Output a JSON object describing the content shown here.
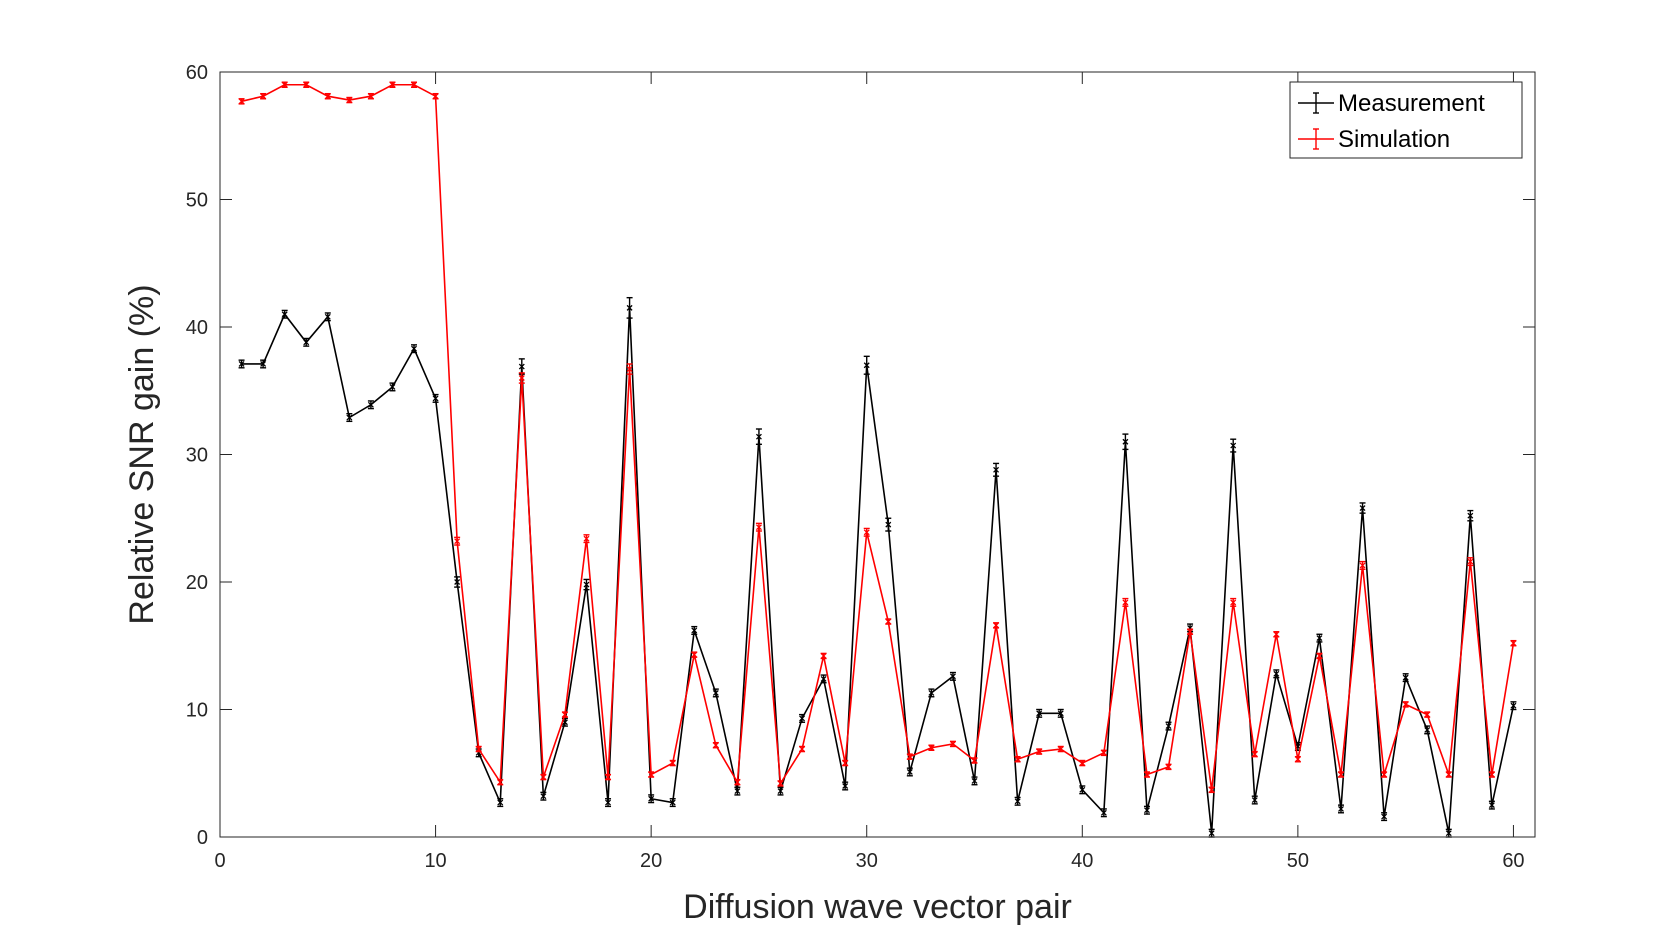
{
  "chart_data": {
    "type": "line",
    "xlabel": "Diffusion wave vector pair",
    "ylabel": "Relative SNR gain (%)",
    "xlim": [
      0,
      61
    ],
    "ylim": [
      0,
      60
    ],
    "xticks": [
      0,
      10,
      20,
      30,
      40,
      50,
      60
    ],
    "yticks": [
      0,
      10,
      20,
      30,
      40,
      50,
      60
    ],
    "grid": false,
    "legend_position": "top-right",
    "x": [
      1,
      2,
      3,
      4,
      5,
      6,
      7,
      8,
      9,
      10,
      11,
      12,
      13,
      14,
      15,
      16,
      17,
      18,
      19,
      20,
      21,
      22,
      23,
      24,
      25,
      26,
      27,
      28,
      29,
      30,
      31,
      32,
      33,
      34,
      35,
      36,
      37,
      38,
      39,
      40,
      41,
      42,
      43,
      44,
      45,
      46,
      47,
      48,
      49,
      50,
      51,
      52,
      53,
      54,
      55,
      56,
      57,
      58,
      59,
      60
    ],
    "series": [
      {
        "name": "Measurement",
        "color": "#000000",
        "values": [
          37.1,
          37.1,
          41.0,
          38.8,
          40.8,
          32.9,
          33.9,
          35.3,
          38.3,
          34.4,
          20.0,
          6.6,
          2.7,
          36.9,
          3.2,
          9.0,
          19.8,
          2.7,
          41.5,
          3.0,
          2.7,
          16.2,
          11.3,
          3.6,
          31.4,
          3.6,
          9.3,
          12.4,
          4.0,
          37.0,
          24.5,
          5.1,
          11.3,
          12.6,
          4.4,
          28.8,
          2.8,
          9.7,
          9.7,
          3.7,
          1.9,
          31.0,
          2.1,
          8.7,
          16.4,
          0.3,
          30.7,
          2.9,
          12.8,
          7.1,
          15.6,
          2.2,
          25.8,
          1.6,
          12.5,
          8.4,
          0.3,
          25.2,
          2.5,
          10.3
        ],
        "errors": [
          0.3,
          0.3,
          0.3,
          0.3,
          0.3,
          0.3,
          0.3,
          0.3,
          0.3,
          0.3,
          0.4,
          0.3,
          0.3,
          0.6,
          0.3,
          0.3,
          0.4,
          0.3,
          0.8,
          0.3,
          0.3,
          0.3,
          0.3,
          0.3,
          0.6,
          0.3,
          0.3,
          0.3,
          0.3,
          0.7,
          0.5,
          0.3,
          0.3,
          0.3,
          0.3,
          0.5,
          0.3,
          0.3,
          0.3,
          0.3,
          0.3,
          0.6,
          0.3,
          0.3,
          0.3,
          0.3,
          0.5,
          0.3,
          0.3,
          0.3,
          0.3,
          0.3,
          0.4,
          0.3,
          0.3,
          0.3,
          0.3,
          0.4,
          0.3,
          0.3
        ]
      },
      {
        "name": "Simulation",
        "color": "#ff0000",
        "values": [
          57.7,
          58.1,
          59.0,
          59.0,
          58.1,
          57.8,
          58.1,
          59.0,
          59.0,
          58.1,
          23.2,
          6.9,
          4.3,
          36.0,
          4.7,
          9.6,
          23.4,
          4.7,
          36.7,
          4.9,
          5.8,
          14.3,
          7.2,
          4.3,
          24.3,
          4.2,
          6.9,
          14.2,
          5.8,
          23.9,
          16.9,
          6.3,
          7.0,
          7.3,
          6.0,
          16.6,
          6.1,
          6.7,
          6.9,
          5.8,
          6.6,
          18.4,
          4.9,
          5.5,
          16.1,
          3.7,
          18.4,
          6.5,
          15.9,
          6.1,
          14.2,
          4.9,
          21.3,
          4.9,
          10.4,
          9.6,
          4.9,
          21.6,
          4.9,
          15.2
        ],
        "errors": [
          0.2,
          0.2,
          0.2,
          0.2,
          0.2,
          0.2,
          0.2,
          0.2,
          0.2,
          0.2,
          0.3,
          0.2,
          0.2,
          0.4,
          0.2,
          0.2,
          0.3,
          0.2,
          0.4,
          0.2,
          0.2,
          0.2,
          0.2,
          0.2,
          0.3,
          0.2,
          0.2,
          0.2,
          0.2,
          0.3,
          0.2,
          0.2,
          0.2,
          0.2,
          0.2,
          0.2,
          0.2,
          0.2,
          0.2,
          0.2,
          0.2,
          0.3,
          0.2,
          0.2,
          0.2,
          0.2,
          0.3,
          0.2,
          0.2,
          0.2,
          0.2,
          0.2,
          0.3,
          0.2,
          0.2,
          0.2,
          0.2,
          0.3,
          0.2,
          0.2
        ]
      }
    ]
  }
}
